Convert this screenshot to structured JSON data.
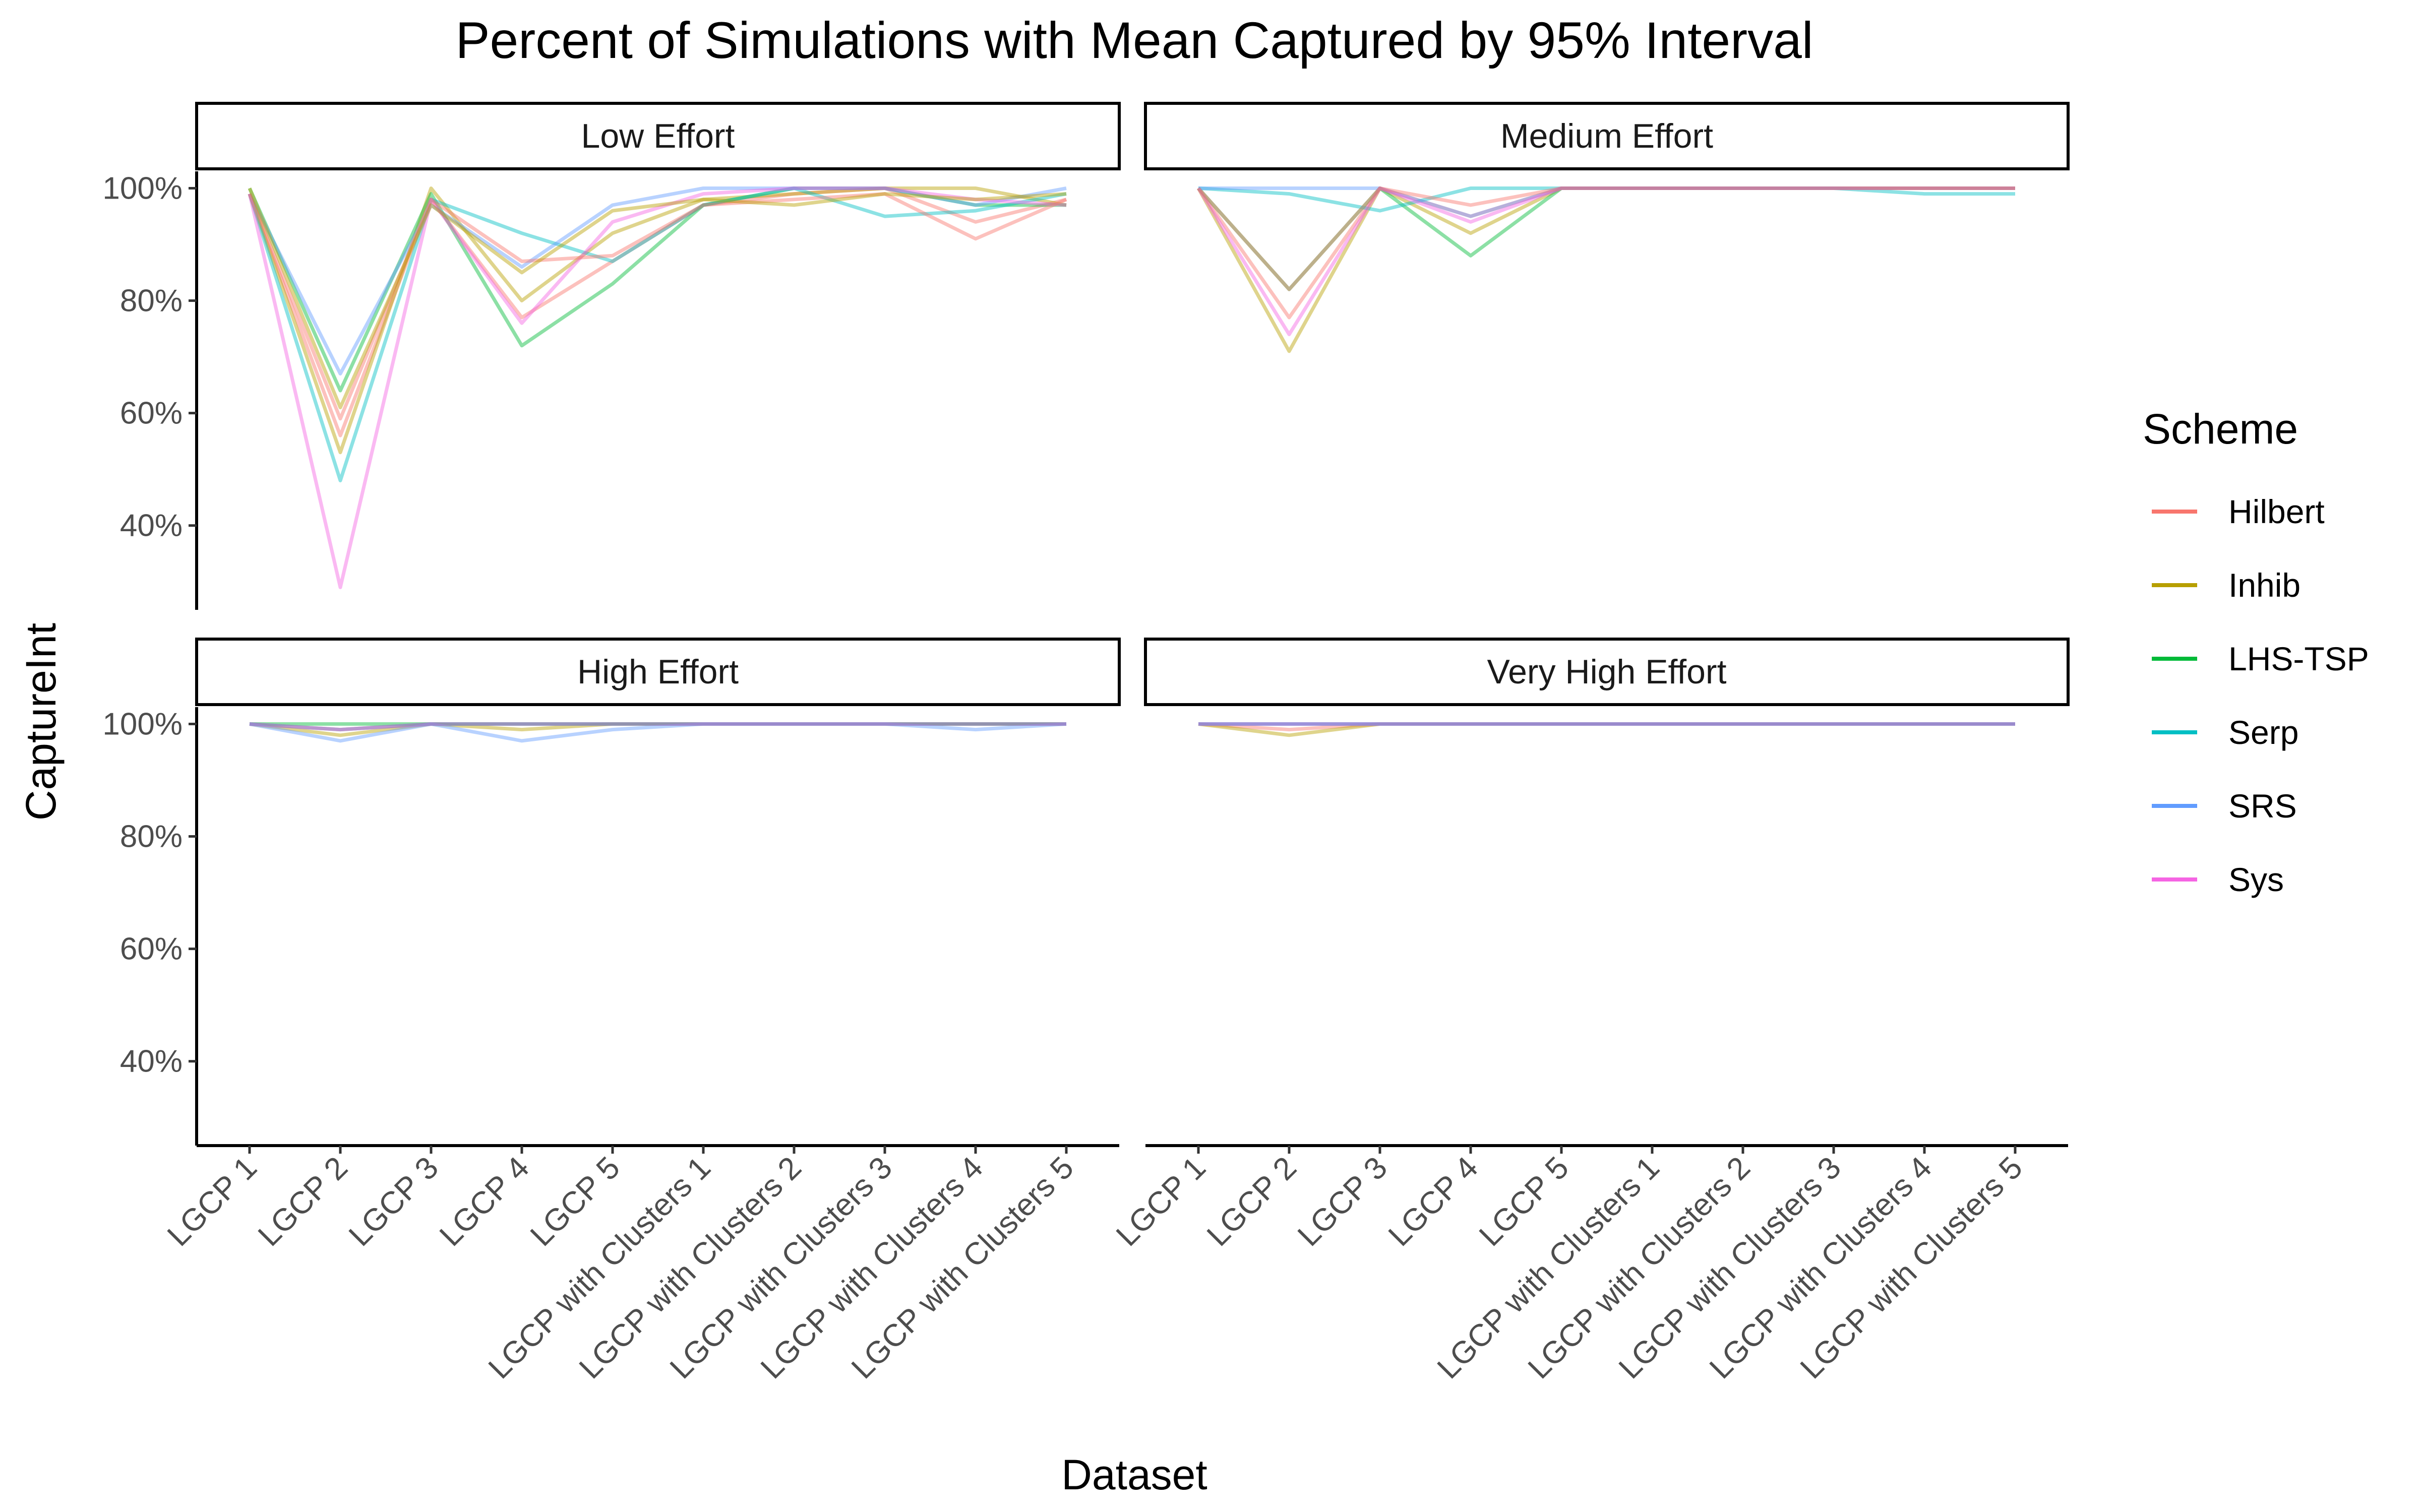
{
  "chart_data": {
    "type": "line",
    "title": "Percent of Simulations with Mean Captured by 95% Interval",
    "xlabel": "Dataset",
    "ylabel": "CaptureInt",
    "ylim": [
      0.25,
      1.03
    ],
    "yticks": [
      0.4,
      0.6,
      0.8,
      1.0
    ],
    "ytick_labels": [
      "40%",
      "60%",
      "80%",
      "100%"
    ],
    "grid": false,
    "legend": {
      "title": "Scheme",
      "placement": "right",
      "entries": [
        "Hilbert",
        "Inhib",
        "LHS-TSP",
        "Serp",
        "SRS",
        "Sys"
      ]
    },
    "colors": {
      "Hilbert": "#F8766D",
      "Inhib": "#B79F00",
      "LHS-TSP": "#00BA38",
      "Serp": "#00BFC4",
      "SRS": "#619CFF",
      "Sys": "#F564E3"
    },
    "categories": [
      "LGCP 1",
      "LGCP 2",
      "LGCP 3",
      "LGCP 4",
      "LGCP 5",
      "LGCP with Clusters 1",
      "LGCP with Clusters 2",
      "LGCP with Clusters 3",
      "LGCP with Clusters 4",
      "LGCP with Clusters 5"
    ],
    "panels": [
      {
        "label": "Low Effort",
        "series": [
          {
            "name": "Hilbert",
            "values": [
              0.99,
              0.56,
              0.98,
              0.77,
              0.87,
              0.97,
              0.99,
              1.0,
              0.94,
              0.98
            ]
          },
          {
            "name": "Inhib",
            "values": [
              0.99,
              0.53,
              1.0,
              0.8,
              0.92,
              0.98,
              0.99,
              1.0,
              1.0,
              0.97
            ]
          },
          {
            "name": "LHS-TSP",
            "values": [
              1.0,
              0.64,
              0.99,
              0.72,
              0.83,
              0.97,
              1.0,
              1.0,
              0.97,
              0.97
            ]
          },
          {
            "name": "Serp",
            "values": [
              0.99,
              0.48,
              0.98,
              0.92,
              0.87,
              0.97,
              1.0,
              0.95,
              0.96,
              0.99
            ]
          },
          {
            "name": "SRS",
            "values": [
              0.99,
              0.67,
              0.97,
              0.86,
              0.97,
              1.0,
              1.0,
              1.0,
              0.97,
              1.0
            ]
          },
          {
            "name": "Sys",
            "values": [
              0.99,
              0.29,
              0.98,
              0.76,
              0.94,
              0.99,
              1.0,
              1.0,
              0.98,
              0.97
            ]
          },
          {
            "name": "",
            "values": [
              0.99,
              0.59,
              0.98,
              0.87,
              0.88,
              0.97,
              0.98,
              0.99,
              0.91,
              0.98
            ]
          },
          {
            "name": "",
            "values": [
              1.0,
              0.61,
              0.97,
              0.85,
              0.96,
              0.98,
              0.97,
              0.99,
              0.98,
              0.99
            ]
          }
        ]
      },
      {
        "label": "Medium Effort",
        "series": [
          {
            "name": "Hilbert",
            "values": [
              1.0,
              0.77,
              1.0,
              0.95,
              1.0,
              1.0,
              1.0,
              1.0,
              1.0,
              1.0
            ]
          },
          {
            "name": "Inhib",
            "values": [
              1.0,
              0.71,
              1.0,
              0.92,
              1.0,
              1.0,
              1.0,
              1.0,
              1.0,
              1.0
            ]
          },
          {
            "name": "LHS-TSP",
            "values": [
              1.0,
              0.82,
              1.0,
              0.88,
              1.0,
              1.0,
              1.0,
              1.0,
              1.0,
              1.0
            ]
          },
          {
            "name": "Serp",
            "values": [
              1.0,
              0.99,
              0.96,
              1.0,
              1.0,
              1.0,
              1.0,
              1.0,
              0.99,
              0.99
            ]
          },
          {
            "name": "SRS",
            "values": [
              1.0,
              1.0,
              1.0,
              0.95,
              1.0,
              1.0,
              1.0,
              1.0,
              1.0,
              1.0
            ]
          },
          {
            "name": "Sys",
            "values": [
              1.0,
              0.74,
              1.0,
              0.94,
              1.0,
              1.0,
              1.0,
              1.0,
              1.0,
              1.0
            ]
          },
          {
            "name": "",
            "values": [
              1.0,
              0.82,
              1.0,
              0.97,
              1.0,
              1.0,
              1.0,
              1.0,
              1.0,
              1.0
            ]
          }
        ]
      },
      {
        "label": "High Effort",
        "series": [
          {
            "name": "Hilbert",
            "values": [
              1.0,
              0.99,
              1.0,
              1.0,
              1.0,
              1.0,
              1.0,
              1.0,
              1.0,
              1.0
            ]
          },
          {
            "name": "Inhib",
            "values": [
              1.0,
              0.98,
              1.0,
              0.99,
              1.0,
              1.0,
              1.0,
              1.0,
              1.0,
              1.0
            ]
          },
          {
            "name": "LHS-TSP",
            "values": [
              1.0,
              1.0,
              1.0,
              1.0,
              1.0,
              1.0,
              1.0,
              1.0,
              1.0,
              1.0
            ]
          },
          {
            "name": "Serp",
            "values": [
              1.0,
              0.99,
              1.0,
              1.0,
              1.0,
              1.0,
              1.0,
              1.0,
              1.0,
              1.0
            ]
          },
          {
            "name": "SRS",
            "values": [
              1.0,
              0.97,
              1.0,
              0.97,
              0.99,
              1.0,
              1.0,
              1.0,
              0.99,
              1.0
            ]
          },
          {
            "name": "Sys",
            "values": [
              1.0,
              0.99,
              1.0,
              1.0,
              1.0,
              1.0,
              1.0,
              1.0,
              1.0,
              1.0
            ]
          }
        ]
      },
      {
        "label": "Very High Effort",
        "series": [
          {
            "name": "Hilbert",
            "values": [
              1.0,
              0.99,
              1.0,
              1.0,
              1.0,
              1.0,
              1.0,
              1.0,
              1.0,
              1.0
            ]
          },
          {
            "name": "Inhib",
            "values": [
              1.0,
              0.98,
              1.0,
              1.0,
              1.0,
              1.0,
              1.0,
              1.0,
              1.0,
              1.0
            ]
          },
          {
            "name": "LHS-TSP",
            "values": [
              1.0,
              1.0,
              1.0,
              1.0,
              1.0,
              1.0,
              1.0,
              1.0,
              1.0,
              1.0
            ]
          },
          {
            "name": "Serp",
            "values": [
              1.0,
              1.0,
              1.0,
              1.0,
              1.0,
              1.0,
              1.0,
              1.0,
              1.0,
              1.0
            ]
          },
          {
            "name": "SRS",
            "values": [
              1.0,
              1.0,
              1.0,
              1.0,
              1.0,
              1.0,
              1.0,
              1.0,
              1.0,
              1.0
            ]
          },
          {
            "name": "Sys",
            "values": [
              1.0,
              1.0,
              1.0,
              1.0,
              1.0,
              1.0,
              1.0,
              1.0,
              1.0,
              1.0
            ]
          }
        ]
      }
    ]
  }
}
